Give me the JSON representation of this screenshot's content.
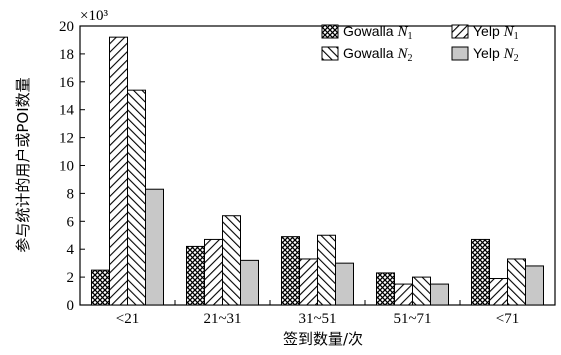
{
  "chart_data": {
    "type": "bar",
    "categories": [
      "<21",
      "21~31",
      "31~51",
      "51~71",
      "<71"
    ],
    "series": [
      {
        "name": "Gowalla",
        "symbol": "N",
        "sub": "1",
        "pattern": "crosshatch",
        "values": [
          2.5,
          4.2,
          4.9,
          2.3,
          4.7
        ]
      },
      {
        "name": "Yelp",
        "symbol": "N",
        "sub": "1",
        "pattern": "diag-right",
        "values": [
          19.2,
          4.7,
          3.3,
          1.5,
          1.9
        ]
      },
      {
        "name": "Gowalla",
        "symbol": "N",
        "sub": "2",
        "pattern": "diag-left",
        "values": [
          15.4,
          6.4,
          5.0,
          2.0,
          3.3
        ]
      },
      {
        "name": "Yelp",
        "symbol": "N",
        "sub": "2",
        "pattern": "solid-gray",
        "values": [
          8.3,
          3.2,
          3.0,
          1.5,
          2.8
        ]
      }
    ],
    "xlabel": "签到数量/次",
    "ylabel": "参与统计的用户或POI数量",
    "y_multiplier": "×10³",
    "ylim": [
      0,
      20
    ],
    "yticks": [
      "0",
      "2",
      "4",
      "6",
      "8",
      "10",
      "12",
      "14",
      "16",
      "18",
      "20"
    ],
    "legend_position": "top-right",
    "grid": false,
    "colors": {
      "solid": "#c8c8c8",
      "stroke": "#000000"
    }
  }
}
